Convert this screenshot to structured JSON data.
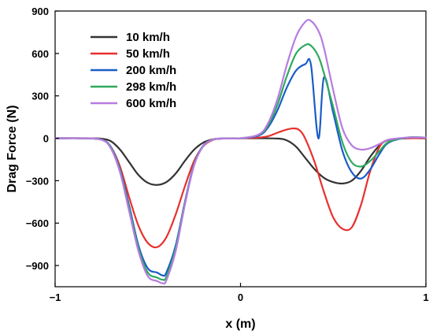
{
  "chart_data": {
    "type": "line",
    "xlabel": "x (m)",
    "ylabel": "Drag Force (N)",
    "xlim": [
      -1,
      1
    ],
    "ylim": [
      -1050,
      900
    ],
    "xticks": [
      -1,
      0,
      1
    ],
    "xtick_labels": [
      "−1",
      "0",
      "1"
    ],
    "yticks": [
      900,
      600,
      300,
      0,
      -300,
      -600,
      -900
    ],
    "ytick_labels": [
      "900",
      "600",
      "300",
      "0",
      "−300",
      "−600",
      "−900"
    ],
    "grid": false,
    "legend_position": "top-left",
    "series": [
      {
        "name": "10 km/h",
        "color": "#333333",
        "x": [
          -1,
          -0.9,
          -0.8,
          -0.75,
          -0.7,
          -0.65,
          -0.6,
          -0.55,
          -0.5,
          -0.45,
          -0.4,
          -0.35,
          -0.3,
          -0.25,
          -0.2,
          -0.15,
          -0.1,
          0,
          0.1,
          0.2,
          0.25,
          0.3,
          0.35,
          0.4,
          0.45,
          0.5,
          0.55,
          0.6,
          0.65,
          0.7,
          0.75,
          0.8,
          0.9,
          1
        ],
        "y": [
          0,
          0,
          0,
          -3,
          -20,
          -80,
          -170,
          -260,
          -315,
          -330,
          -310,
          -250,
          -160,
          -80,
          -30,
          -8,
          -2,
          0,
          0,
          -2,
          -15,
          -60,
          -140,
          -220,
          -280,
          -310,
          -320,
          -300,
          -230,
          -130,
          -50,
          -12,
          0,
          0
        ]
      },
      {
        "name": "50 km/h",
        "color": "#e8302e",
        "x": [
          -1,
          -0.85,
          -0.75,
          -0.7,
          -0.65,
          -0.6,
          -0.55,
          -0.5,
          -0.45,
          -0.4,
          -0.35,
          -0.3,
          -0.25,
          -0.2,
          -0.15,
          -0.1,
          0,
          0.1,
          0.15,
          0.2,
          0.25,
          0.29,
          0.32,
          0.35,
          0.4,
          0.45,
          0.5,
          0.55,
          0.6,
          0.65,
          0.7,
          0.75,
          0.8,
          0.9,
          1
        ],
        "y": [
          0,
          0,
          -10,
          -60,
          -200,
          -420,
          -620,
          -740,
          -770,
          -700,
          -540,
          -340,
          -160,
          -55,
          -12,
          -2,
          0,
          5,
          15,
          40,
          62,
          70,
          55,
          -5,
          -170,
          -380,
          -560,
          -640,
          -630,
          -470,
          -230,
          -60,
          -10,
          0,
          0
        ]
      },
      {
        "name": "200 km/h",
        "color": "#1a5cc8",
        "x": [
          -1,
          -0.85,
          -0.75,
          -0.7,
          -0.65,
          -0.6,
          -0.55,
          -0.5,
          -0.45,
          -0.42,
          -0.4,
          -0.35,
          -0.3,
          -0.25,
          -0.2,
          -0.15,
          -0.1,
          0,
          0.1,
          0.15,
          0.2,
          0.25,
          0.3,
          0.35,
          0.38,
          0.42,
          0.45,
          0.5,
          0.55,
          0.6,
          0.65,
          0.7,
          0.75,
          0.8,
          0.9,
          1
        ],
        "y": [
          0,
          0,
          -10,
          -60,
          -220,
          -480,
          -760,
          -920,
          -950,
          -970,
          -950,
          -760,
          -450,
          -180,
          -50,
          -10,
          -2,
          0,
          20,
          80,
          200,
          360,
          480,
          525,
          520,
          -1,
          430,
          180,
          -90,
          -240,
          -285,
          -220,
          -110,
          -30,
          5,
          5
        ]
      },
      {
        "name": "298 km/h",
        "color": "#2ea860",
        "x": [
          -1,
          -0.85,
          -0.75,
          -0.7,
          -0.65,
          -0.6,
          -0.55,
          -0.5,
          -0.45,
          -0.42,
          -0.4,
          -0.35,
          -0.3,
          -0.25,
          -0.2,
          -0.15,
          -0.1,
          0,
          0.1,
          0.15,
          0.2,
          0.25,
          0.3,
          0.35,
          0.38,
          0.42,
          0.45,
          0.5,
          0.55,
          0.6,
          0.65,
          0.7,
          0.75,
          0.8,
          0.9,
          1
        ],
        "y": [
          0,
          0,
          -10,
          -65,
          -230,
          -500,
          -780,
          -950,
          -985,
          -1000,
          -980,
          -780,
          -460,
          -185,
          -52,
          -10,
          -2,
          0,
          25,
          95,
          240,
          440,
          600,
          660,
          655,
          580,
          460,
          220,
          -30,
          -170,
          -200,
          -160,
          -90,
          -25,
          5,
          5
        ]
      },
      {
        "name": "600 km/h",
        "color": "#b77be0",
        "x": [
          -1,
          -0.85,
          -0.75,
          -0.7,
          -0.65,
          -0.6,
          -0.55,
          -0.5,
          -0.45,
          -0.42,
          -0.4,
          -0.35,
          -0.3,
          -0.25,
          -0.2,
          -0.15,
          -0.1,
          0,
          0.1,
          0.15,
          0.2,
          0.25,
          0.3,
          0.35,
          0.38,
          0.42,
          0.45,
          0.5,
          0.55,
          0.6,
          0.65,
          0.7,
          0.75,
          0.8,
          0.9,
          1
        ],
        "y": [
          0,
          0,
          -10,
          -70,
          -240,
          -520,
          -800,
          -975,
          -1010,
          -1025,
          -1005,
          -800,
          -470,
          -190,
          -54,
          -10,
          -2,
          0,
          28,
          110,
          280,
          520,
          720,
          825,
          830,
          760,
          640,
          340,
          70,
          -50,
          -80,
          -70,
          -40,
          -10,
          5,
          5
        ]
      }
    ]
  }
}
